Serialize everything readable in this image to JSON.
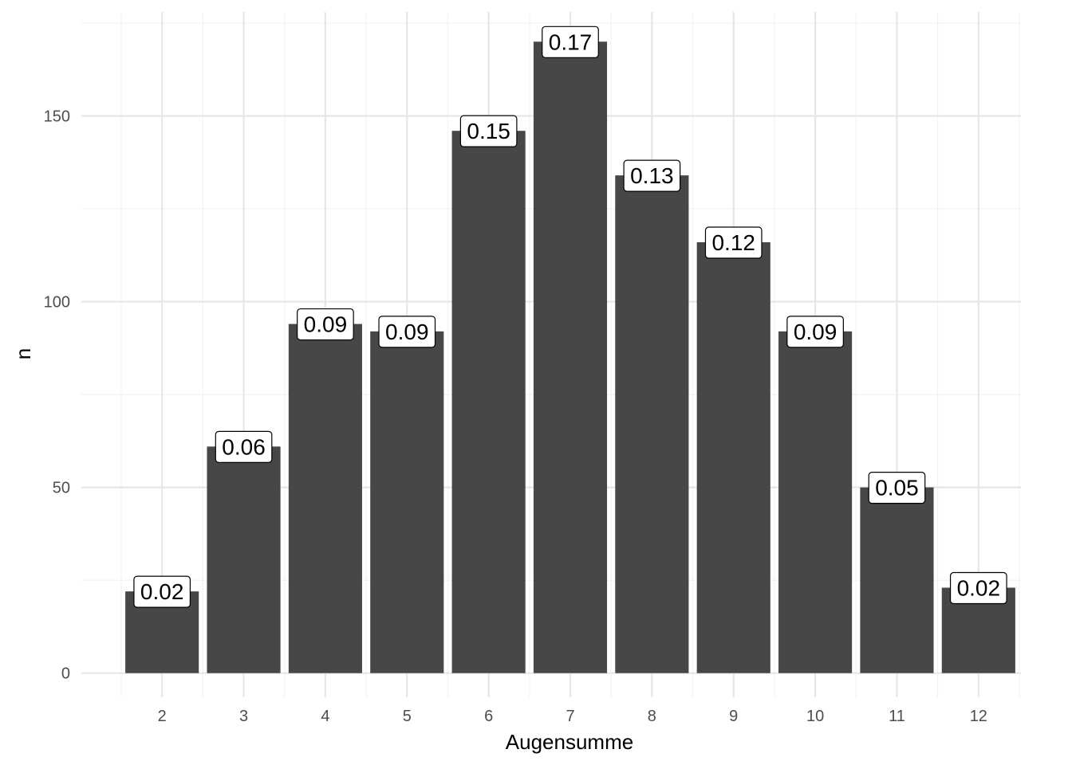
{
  "chart_data": {
    "type": "bar",
    "title": "",
    "xlabel": "Augensumme",
    "ylabel": "n",
    "categories": [
      "2",
      "3",
      "4",
      "5",
      "6",
      "7",
      "8",
      "9",
      "10",
      "11",
      "12"
    ],
    "values": [
      22,
      61,
      94,
      92,
      146,
      170,
      134,
      116,
      92,
      50,
      23
    ],
    "data_labels": [
      "0.02",
      "0.06",
      "0.09",
      "0.09",
      "0.15",
      "0.17",
      "0.13",
      "0.12",
      "0.09",
      "0.05",
      "0.02"
    ],
    "ylim": [
      -6.5,
      178
    ],
    "y_ticks": [
      0,
      50,
      100,
      150
    ],
    "y_tick_labels": [
      "0",
      "50",
      "100",
      "150"
    ],
    "grid": true,
    "legend": "none",
    "colors": {
      "bar": "#474747",
      "grid_major": "#e6e6e6",
      "grid_minor": "#f2f2f2",
      "tick_text": "#4d4d4d",
      "label_fill": "#ffffff",
      "label_border": "#000000"
    }
  }
}
